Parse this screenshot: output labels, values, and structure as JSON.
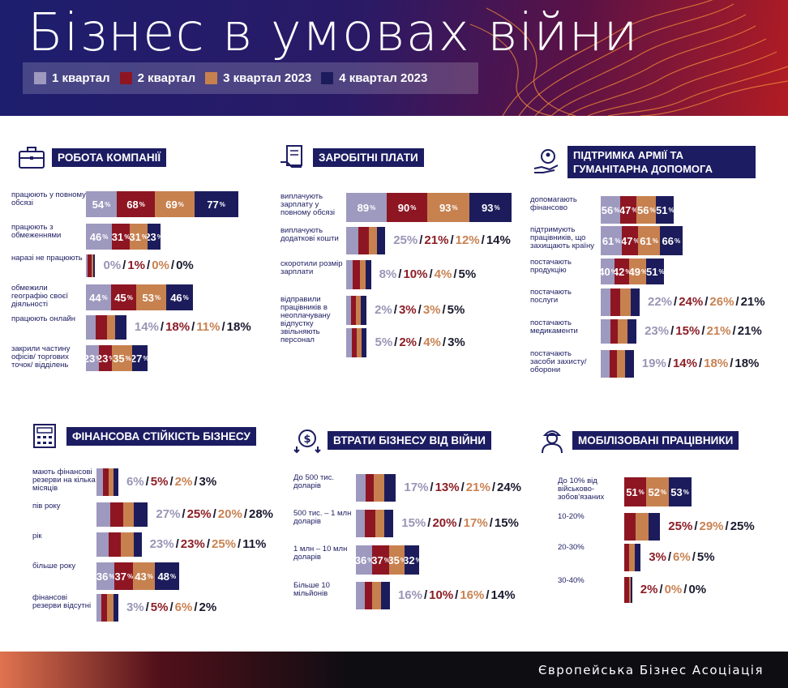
{
  "title": "Бізнес в умовах війни",
  "colors": {
    "q1": "#9e99bf",
    "q2": "#8e1623",
    "q3": "#c7814f",
    "q4": "#1c1c5c"
  },
  "legend": [
    "1 квартал",
    "2 квартал",
    "3 квартал 2023",
    "4 квартал 2023"
  ],
  "footer": "Європейська Бізнес Асоціація",
  "chart_data": [
    {
      "type": "bar",
      "id": "robota",
      "title": "РОБОТА КОМПАНІЇ",
      "categories": [
        "працюють у повному обсязі",
        "працюють з обмеженнями",
        "наразі не працюють",
        "обмежили географію своєї діяльності",
        "працюють онлайн",
        "закрили частину офісів/ торгових точок/ відділень"
      ],
      "series": [
        {
          "name": "1 квартал",
          "values": [
            54,
            46,
            0,
            44,
            14,
            23
          ]
        },
        {
          "name": "2 квартал",
          "values": [
            68,
            31,
            1,
            45,
            18,
            23
          ]
        },
        {
          "name": "3 квартал 2023",
          "values": [
            69,
            31,
            0,
            53,
            11,
            35
          ]
        },
        {
          "name": "4 квартал 2023",
          "values": [
            77,
            23,
            0,
            46,
            18,
            27
          ]
        }
      ]
    },
    {
      "type": "bar",
      "id": "zarplaty",
      "title": "ЗАРОБІТНІ ПЛАТИ",
      "categories": [
        "виплачують зарплату у повному обсязі",
        "виплачують додаткові кошти",
        "скоротили розмір зарплати",
        "відправили працівників в неоплачувану відпустку",
        "звільняють персонал"
      ],
      "series": [
        {
          "name": "1 квартал",
          "values": [
            89,
            25,
            8,
            2,
            5
          ]
        },
        {
          "name": "2 квартал",
          "values": [
            90,
            21,
            10,
            3,
            2
          ]
        },
        {
          "name": "3 квартал 2023",
          "values": [
            93,
            12,
            4,
            3,
            4
          ]
        },
        {
          "name": "4 квартал 2023",
          "values": [
            93,
            14,
            5,
            5,
            3
          ]
        }
      ]
    },
    {
      "type": "bar",
      "id": "armiya",
      "title": "ПІДТРИМКА АРМІЇ ТА ГУМАНІТАРНА ДОПОМОГА",
      "categories": [
        "допомагають фінансово",
        "підтримують працівників, що захищають країну",
        "постачають продукцію",
        "постачають послуги",
        "постачають медикаменти",
        "постачають засоби захисту/ оборони"
      ],
      "series": [
        {
          "name": "1 квартал",
          "values": [
            56,
            61,
            40,
            22,
            23,
            19
          ]
        },
        {
          "name": "2 квартал",
          "values": [
            47,
            47,
            42,
            24,
            15,
            14
          ]
        },
        {
          "name": "3 квартал 2023",
          "values": [
            56,
            61,
            49,
            26,
            21,
            18
          ]
        },
        {
          "name": "4 квартал 2023",
          "values": [
            51,
            66,
            51,
            21,
            21,
            18
          ]
        }
      ]
    },
    {
      "type": "bar",
      "id": "finansy",
      "title": "ФІНАНСОВА СТІЙКІСТЬ БІЗНЕСУ",
      "categories": [
        "мають фінансові резерви на кілька місяців",
        "пів року",
        "рік",
        "більше року",
        "фінансові резерви відсутні"
      ],
      "series": [
        {
          "name": "1 квартал",
          "values": [
            6,
            27,
            23,
            36,
            3
          ]
        },
        {
          "name": "2 квартал",
          "values": [
            5,
            25,
            23,
            37,
            5
          ]
        },
        {
          "name": "3 квартал 2023",
          "values": [
            2,
            20,
            25,
            43,
            6
          ]
        },
        {
          "name": "4 квартал 2023",
          "values": [
            3,
            28,
            11,
            48,
            2
          ]
        }
      ]
    },
    {
      "type": "bar",
      "id": "vtraty",
      "title": "ВТРАТИ БІЗНЕСУ ВІД ВІЙНИ",
      "categories": [
        "До 500 тис. доларів",
        "500 тис. – 1 млн доларів",
        "1 млн – 10 млн доларів",
        "Більше 10 мільйонів"
      ],
      "series": [
        {
          "name": "1 квартал",
          "values": [
            17,
            15,
            36,
            16
          ]
        },
        {
          "name": "2 квартал",
          "values": [
            13,
            20,
            37,
            10
          ]
        },
        {
          "name": "3 квартал 2023",
          "values": [
            21,
            17,
            35,
            16
          ]
        },
        {
          "name": "4 квартал 2023",
          "values": [
            24,
            15,
            32,
            14
          ]
        }
      ]
    },
    {
      "type": "bar",
      "id": "mobilizovani",
      "title": "МОБІЛІЗОВАНІ ПРАЦІВНИКИ",
      "categories": [
        "До 10% від військово- зобов'язаних",
        "10-20%",
        "20-30%",
        "30-40%"
      ],
      "series": [
        {
          "name": "2 квартал",
          "values": [
            51,
            25,
            3,
            2
          ]
        },
        {
          "name": "3 квартал 2023",
          "values": [
            52,
            29,
            6,
            0
          ]
        },
        {
          "name": "4 квартал 2023",
          "values": [
            53,
            25,
            5,
            0
          ]
        }
      ]
    }
  ]
}
